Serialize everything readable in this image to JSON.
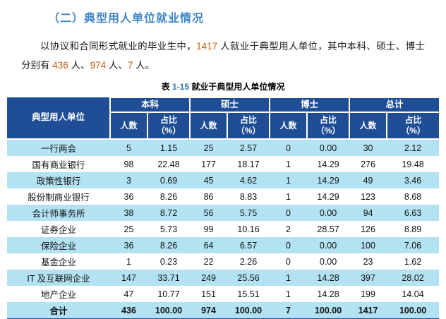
{
  "heading": {
    "text": "（二）典型用人单位就业情况",
    "color": "#3E86C8"
  },
  "paragraph": {
    "highlight_color": "#C55A11",
    "segments": [
      {
        "text": "以协议和合同形式就业的毕业生中，",
        "highlight": false
      },
      {
        "text": "1417",
        "highlight": true
      },
      {
        "text": " 人就业于典型用人单位，其中本科、硕士、博士分别有 ",
        "highlight": false
      },
      {
        "text": "436",
        "highlight": true
      },
      {
        "text": " 人、",
        "highlight": false
      },
      {
        "text": "974",
        "highlight": true
      },
      {
        "text": " 人、",
        "highlight": false
      },
      {
        "text": "7",
        "highlight": true
      },
      {
        "text": " 人。",
        "highlight": false
      }
    ]
  },
  "table": {
    "caption": {
      "prefix": "表",
      "number": "1-15",
      "title": "就业于典型用人单位情况"
    },
    "colors": {
      "header_bg": "#1F4E96",
      "header_text": "#FFFFFF",
      "row_alt_bg": "#B3E3F3",
      "row_bg": "#FFFFFF",
      "bottom_border": "#1F4E96"
    },
    "header": {
      "unit_label": "典型用人单位",
      "groups": [
        "本科",
        "硕士",
        "博士",
        "总计"
      ],
      "sub_count": "人数",
      "sub_pct_line1": "占比",
      "sub_pct_line2": "（%）"
    },
    "rows": [
      {
        "name": "一行两会",
        "values": [
          "5",
          "1.15",
          "25",
          "2.57",
          "0",
          "0.00",
          "30",
          "2.12"
        ],
        "total": false
      },
      {
        "name": "国有商业银行",
        "values": [
          "98",
          "22.48",
          "177",
          "18.17",
          "1",
          "14.29",
          "276",
          "19.48"
        ],
        "total": false
      },
      {
        "name": "政策性银行",
        "values": [
          "3",
          "0.69",
          "45",
          "4.62",
          "1",
          "14.29",
          "49",
          "3.46"
        ],
        "total": false
      },
      {
        "name": "股份制商业银行",
        "values": [
          "36",
          "8.26",
          "86",
          "8.83",
          "1",
          "14.29",
          "123",
          "8.68"
        ],
        "total": false
      },
      {
        "name": "会计师事务所",
        "values": [
          "38",
          "8.72",
          "56",
          "5.75",
          "0",
          "0.00",
          "94",
          "6.63"
        ],
        "total": false
      },
      {
        "name": "证券企业",
        "values": [
          "25",
          "5.73",
          "99",
          "10.16",
          "2",
          "28.57",
          "126",
          "8.89"
        ],
        "total": false
      },
      {
        "name": "保险企业",
        "values": [
          "36",
          "8.26",
          "64",
          "6.57",
          "0",
          "0.00",
          "100",
          "7.06"
        ],
        "total": false
      },
      {
        "name": "基金企业",
        "values": [
          "1",
          "0.23",
          "22",
          "2.26",
          "0",
          "0.00",
          "23",
          "1.62"
        ],
        "total": false
      },
      {
        "name": "IT 及互联网企业",
        "values": [
          "147",
          "33.71",
          "249",
          "25.56",
          "1",
          "14.28",
          "397",
          "28.02"
        ],
        "total": false
      },
      {
        "name": "地产企业",
        "values": [
          "47",
          "10.77",
          "151",
          "15.51",
          "1",
          "14.28",
          "199",
          "14.04"
        ],
        "total": false
      },
      {
        "name": "合计",
        "values": [
          "436",
          "100.00",
          "974",
          "100.00",
          "7",
          "100.00",
          "1417",
          "100.00"
        ],
        "total": true
      }
    ]
  }
}
